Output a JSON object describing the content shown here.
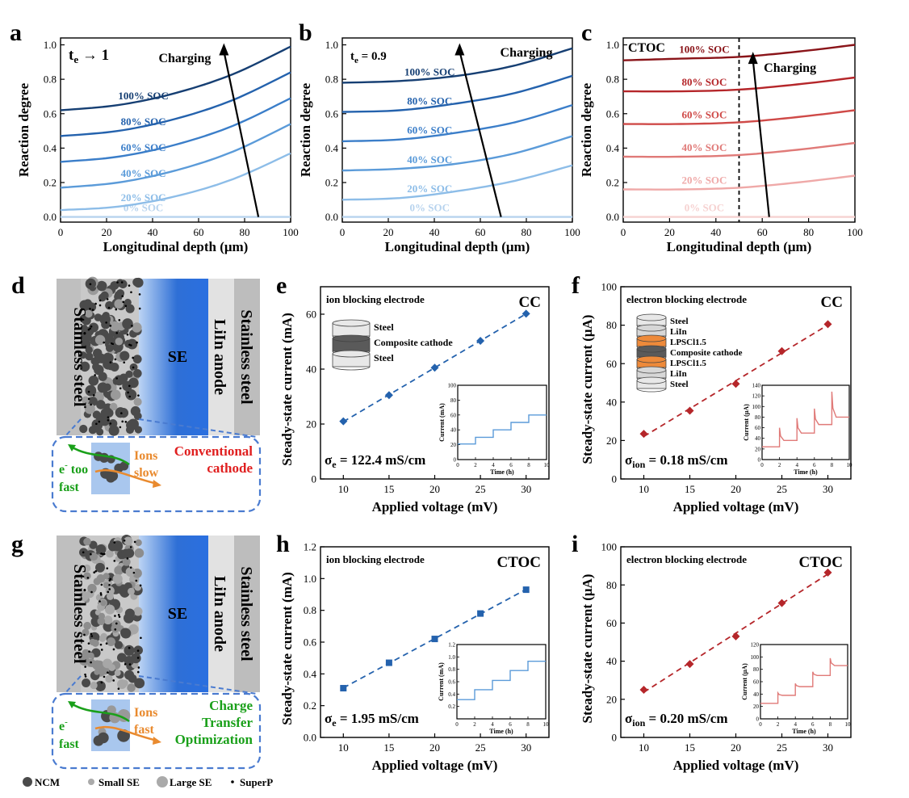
{
  "colors": {
    "blue_series": [
      "#b7d3ee",
      "#8dbde8",
      "#5b9bd9",
      "#3b7ec9",
      "#2462ad",
      "#163f73"
    ],
    "red_series": [
      "#f6d2d1",
      "#efa9a8",
      "#e07a78",
      "#cf4a48",
      "#b5262a",
      "#8a1419"
    ],
    "blue_marker": "#2462ad",
    "red_marker": "#b5262a",
    "inset_blue": "#5b9bd9",
    "inset_red": "#e07a78",
    "se_blue": "#2e6fd6",
    "box_border": "#4a7bd0",
    "green": "#1aa01a",
    "orange": "#e98a2e",
    "red_text": "#e01f1f"
  },
  "panel_labels": [
    "a",
    "b",
    "c",
    "d",
    "e",
    "f",
    "g",
    "h",
    "i"
  ],
  "chart_data": [
    {
      "id": "a",
      "type": "line",
      "annotation_main": "t",
      "annotation_sub": "e",
      "annotation_rest": " → 1",
      "xlabel": "Longitudinal depth (μm)",
      "ylabel": "Reaction degree",
      "xlim": [
        0,
        100
      ],
      "ylim": [
        -0.03,
        1.04
      ],
      "xticks": [
        0,
        20,
        40,
        60,
        80,
        100
      ],
      "yticks": [
        0.0,
        0.2,
        0.4,
        0.6,
        0.8,
        1.0
      ],
      "arrow_label": "Charging",
      "series": [
        {
          "name": "0% SOC",
          "x": [
            0,
            25,
            50,
            75,
            100
          ],
          "y": [
            0.0,
            0.0,
            0.0,
            0.0,
            0.0
          ]
        },
        {
          "name": "20% SOC",
          "x": [
            0,
            25,
            50,
            75,
            100
          ],
          "y": [
            0.04,
            0.06,
            0.12,
            0.22,
            0.37
          ]
        },
        {
          "name": "40% SOC",
          "x": [
            0,
            25,
            50,
            75,
            100
          ],
          "y": [
            0.17,
            0.2,
            0.27,
            0.38,
            0.54
          ]
        },
        {
          "name": "60% SOC",
          "x": [
            0,
            25,
            50,
            75,
            100
          ],
          "y": [
            0.32,
            0.35,
            0.42,
            0.53,
            0.69
          ]
        },
        {
          "name": "80% SOC",
          "x": [
            0,
            25,
            50,
            75,
            100
          ],
          "y": [
            0.47,
            0.5,
            0.57,
            0.68,
            0.84
          ]
        },
        {
          "name": "100% SOC",
          "x": [
            0,
            25,
            50,
            75,
            100
          ],
          "y": [
            0.62,
            0.65,
            0.72,
            0.83,
            0.99
          ]
        }
      ]
    },
    {
      "id": "b",
      "type": "line",
      "annotation_main": "t",
      "annotation_sub": "e",
      "annotation_rest": " = 0.9",
      "xlabel": "Longitudinal depth (μm)",
      "ylabel": "Reaction degree",
      "xlim": [
        0,
        100
      ],
      "ylim": [
        -0.03,
        1.04
      ],
      "xticks": [
        0,
        20,
        40,
        60,
        80,
        100
      ],
      "yticks": [
        0.0,
        0.2,
        0.4,
        0.6,
        0.8,
        1.0
      ],
      "arrow_label": "Charging",
      "series": [
        {
          "name": "0% SOC",
          "x": [
            0,
            25,
            50,
            75,
            100
          ],
          "y": [
            0.0,
            0.0,
            0.0,
            0.0,
            0.0
          ]
        },
        {
          "name": "20% SOC",
          "x": [
            0,
            25,
            50,
            75,
            100
          ],
          "y": [
            0.1,
            0.11,
            0.15,
            0.21,
            0.3
          ]
        },
        {
          "name": "40% SOC",
          "x": [
            0,
            25,
            50,
            75,
            100
          ],
          "y": [
            0.27,
            0.28,
            0.31,
            0.37,
            0.47
          ]
        },
        {
          "name": "60% SOC",
          "x": [
            0,
            25,
            50,
            75,
            100
          ],
          "y": [
            0.44,
            0.45,
            0.49,
            0.55,
            0.65
          ]
        },
        {
          "name": "80% SOC",
          "x": [
            0,
            25,
            50,
            75,
            100
          ],
          "y": [
            0.61,
            0.62,
            0.66,
            0.72,
            0.82
          ]
        },
        {
          "name": "100% SOC",
          "x": [
            0,
            25,
            50,
            75,
            100
          ],
          "y": [
            0.78,
            0.79,
            0.82,
            0.88,
            0.98
          ]
        }
      ]
    },
    {
      "id": "c",
      "type": "line",
      "annotation_main": "CTOC",
      "annotation_sub": "",
      "annotation_rest": "",
      "xlabel": "Longitudinal depth (μm)",
      "ylabel": "Reaction degree",
      "xlim": [
        0,
        100
      ],
      "ylim": [
        -0.03,
        1.04
      ],
      "xticks": [
        0,
        20,
        40,
        60,
        80,
        100
      ],
      "yticks": [
        0.0,
        0.2,
        0.4,
        0.6,
        0.8,
        1.0
      ],
      "arrow_label": "Charging",
      "vline_x": 50,
      "series": [
        {
          "name": "0% SOC",
          "x": [
            0,
            25,
            50,
            75,
            100
          ],
          "y": [
            0.0,
            0.0,
            0.0,
            0.0,
            0.0
          ]
        },
        {
          "name": "20% SOC",
          "x": [
            0,
            25,
            50,
            75,
            100
          ],
          "y": [
            0.16,
            0.16,
            0.17,
            0.2,
            0.24
          ]
        },
        {
          "name": "40% SOC",
          "x": [
            0,
            25,
            50,
            75,
            100
          ],
          "y": [
            0.35,
            0.35,
            0.36,
            0.39,
            0.43
          ]
        },
        {
          "name": "60% SOC",
          "x": [
            0,
            25,
            50,
            75,
            100
          ],
          "y": [
            0.54,
            0.54,
            0.55,
            0.58,
            0.62
          ]
        },
        {
          "name": "80% SOC",
          "x": [
            0,
            25,
            50,
            75,
            100
          ],
          "y": [
            0.73,
            0.73,
            0.74,
            0.77,
            0.81
          ]
        },
        {
          "name": "100% SOC",
          "x": [
            0,
            25,
            50,
            75,
            100
          ],
          "y": [
            0.91,
            0.92,
            0.93,
            0.96,
            1.0
          ]
        }
      ]
    },
    {
      "id": "e",
      "type": "scatter",
      "title": "ion blocking  electrode",
      "tag": "CC",
      "sigma_main": "σ",
      "sigma_sub": "e",
      "sigma_value": " = 122.4 mS/cm",
      "xlabel": "Applied voltage (mV)",
      "ylabel": "Steady-state current (mA)",
      "xlim": [
        7.5,
        32.5
      ],
      "ylim": [
        0,
        70
      ],
      "xticks": [
        10,
        15,
        20,
        25,
        30
      ],
      "yticks": [
        0,
        20,
        40,
        60
      ],
      "x": [
        10,
        15,
        20,
        25,
        30
      ],
      "y": [
        21,
        30.5,
        40.5,
        50.3,
        60.2
      ],
      "stack_labels": [
        "Steel",
        "Composite cathode",
        "Steel"
      ],
      "inset": {
        "xlabel": "Time (h)",
        "ylabel": "Current (mA)",
        "xlim": [
          0,
          10
        ],
        "ylim": [
          0,
          100
        ],
        "xticks": [
          0,
          2,
          4,
          6,
          8,
          10
        ],
        "yticks": [
          0,
          20,
          40,
          60,
          80,
          100
        ],
        "step_levels": [
          21,
          30,
          40,
          50,
          60
        ]
      }
    },
    {
      "id": "f",
      "type": "scatter",
      "title": "electron blocking electrode",
      "tag": "CC",
      "sigma_main": "σ",
      "sigma_sub": "ion",
      "sigma_value": " = 0.18 mS/cm",
      "xlabel": "Applied voltage (mV)",
      "ylabel": "Steady-state current (μA)",
      "xlim": [
        7.5,
        32.5
      ],
      "ylim": [
        0,
        100
      ],
      "xticks": [
        10,
        15,
        20,
        25,
        30
      ],
      "yticks": [
        0,
        20,
        40,
        60,
        80,
        100
      ],
      "x": [
        10,
        15,
        20,
        25,
        30
      ],
      "y": [
        23.5,
        35.5,
        49.5,
        66.5,
        80.5
      ],
      "stack_labels": [
        "Steel",
        "LiIn",
        "LPSCl1.5",
        "Composite cathode",
        "LPSCl1.5",
        "LiIn",
        "Steel"
      ],
      "inset": {
        "xlabel": "Time (h)",
        "ylabel": "Current (μA)",
        "xlim": [
          0,
          10
        ],
        "ylim": [
          0,
          140
        ],
        "xticks": [
          0,
          2,
          4,
          6,
          8,
          10
        ],
        "yticks": [
          0,
          20,
          40,
          60,
          80,
          100,
          120,
          140
        ],
        "step_levels": [
          24,
          36,
          50,
          66,
          80
        ],
        "spike_peaks": [
          60,
          78,
          96,
          128
        ]
      }
    },
    {
      "id": "h",
      "type": "scatter",
      "title": "ion blocking electrode",
      "tag": "CTOC",
      "sigma_main": "σ",
      "sigma_sub": "e",
      "sigma_value": " = 1.95 mS/cm",
      "xlabel": "Applied voltage (mV)",
      "ylabel": "Steady-state current (mA)",
      "xlim": [
        7.5,
        32.5
      ],
      "ylim": [
        0,
        1.2
      ],
      "xticks": [
        10,
        15,
        20,
        25,
        30
      ],
      "yticks": [
        0.0,
        0.2,
        0.4,
        0.6,
        0.8,
        1.0,
        1.2
      ],
      "x": [
        10,
        15,
        20,
        25,
        30
      ],
      "y": [
        0.31,
        0.47,
        0.62,
        0.78,
        0.93
      ],
      "inset": {
        "xlabel": "Time (h)",
        "ylabel": "Current (mA)",
        "xlim": [
          0,
          10
        ],
        "ylim": [
          0,
          1.2
        ],
        "xticks": [
          0,
          2,
          4,
          6,
          8,
          10
        ],
        "yticks": [
          0.2,
          0.4,
          0.6,
          0.8,
          1.0,
          1.2
        ],
        "step_levels": [
          0.31,
          0.47,
          0.62,
          0.78,
          0.93
        ]
      }
    },
    {
      "id": "i",
      "type": "scatter",
      "title": "electron blocking electrode",
      "tag": "CTOC",
      "sigma_main": "σ",
      "sigma_sub": "ion",
      "sigma_value": " = 0.20 mS/cm",
      "xlabel": "Applied voltage (mV)",
      "ylabel": "Steady-state current (μA)",
      "xlim": [
        7.5,
        32.5
      ],
      "ylim": [
        0,
        100
      ],
      "xticks": [
        10,
        15,
        20,
        25,
        30
      ],
      "yticks": [
        0,
        20,
        40,
        60,
        80,
        100
      ],
      "x": [
        10,
        15,
        20,
        25,
        30
      ],
      "y": [
        25,
        38.5,
        53,
        70.5,
        86.5
      ],
      "inset": {
        "xlabel": "Time (h)",
        "ylabel": "Current (μA)",
        "xlim": [
          0,
          10
        ],
        "ylim": [
          0,
          120
        ],
        "xticks": [
          0,
          2,
          4,
          6,
          8,
          10
        ],
        "yticks": [
          0,
          20,
          40,
          60,
          80,
          100,
          120
        ],
        "step_levels": [
          25,
          38,
          52,
          70,
          86
        ],
        "spike_peaks": [
          42,
          57,
          76,
          98
        ]
      }
    }
  ],
  "schematics": [
    {
      "id": "d",
      "left_label": "Stainless steel",
      "se_label": "SE",
      "anode_label": "LiIn anode",
      "right_label": "Stainless steel",
      "callout_title": "Conventional cathode",
      "callout_title_color": "#e01f1f",
      "electron_label": "e",
      "electron_sup": "-",
      "electron_desc": "too fast",
      "ion_label": "Ions",
      "ion_desc": "slow"
    },
    {
      "id": "g",
      "left_label": "Stainless steel",
      "se_label": "SE",
      "anode_label": "LiIn anode",
      "right_label": "Stainless steel",
      "callout_title": "Charge Transfer Optimization",
      "callout_title_color": "#1aa01a",
      "electron_label": "e",
      "electron_sup": "-",
      "electron_desc": "fast",
      "ion_label": "Ions",
      "ion_desc": "fast"
    }
  ],
  "legend": [
    "NCM",
    "Small SE",
    "Large SE",
    "SuperP"
  ]
}
